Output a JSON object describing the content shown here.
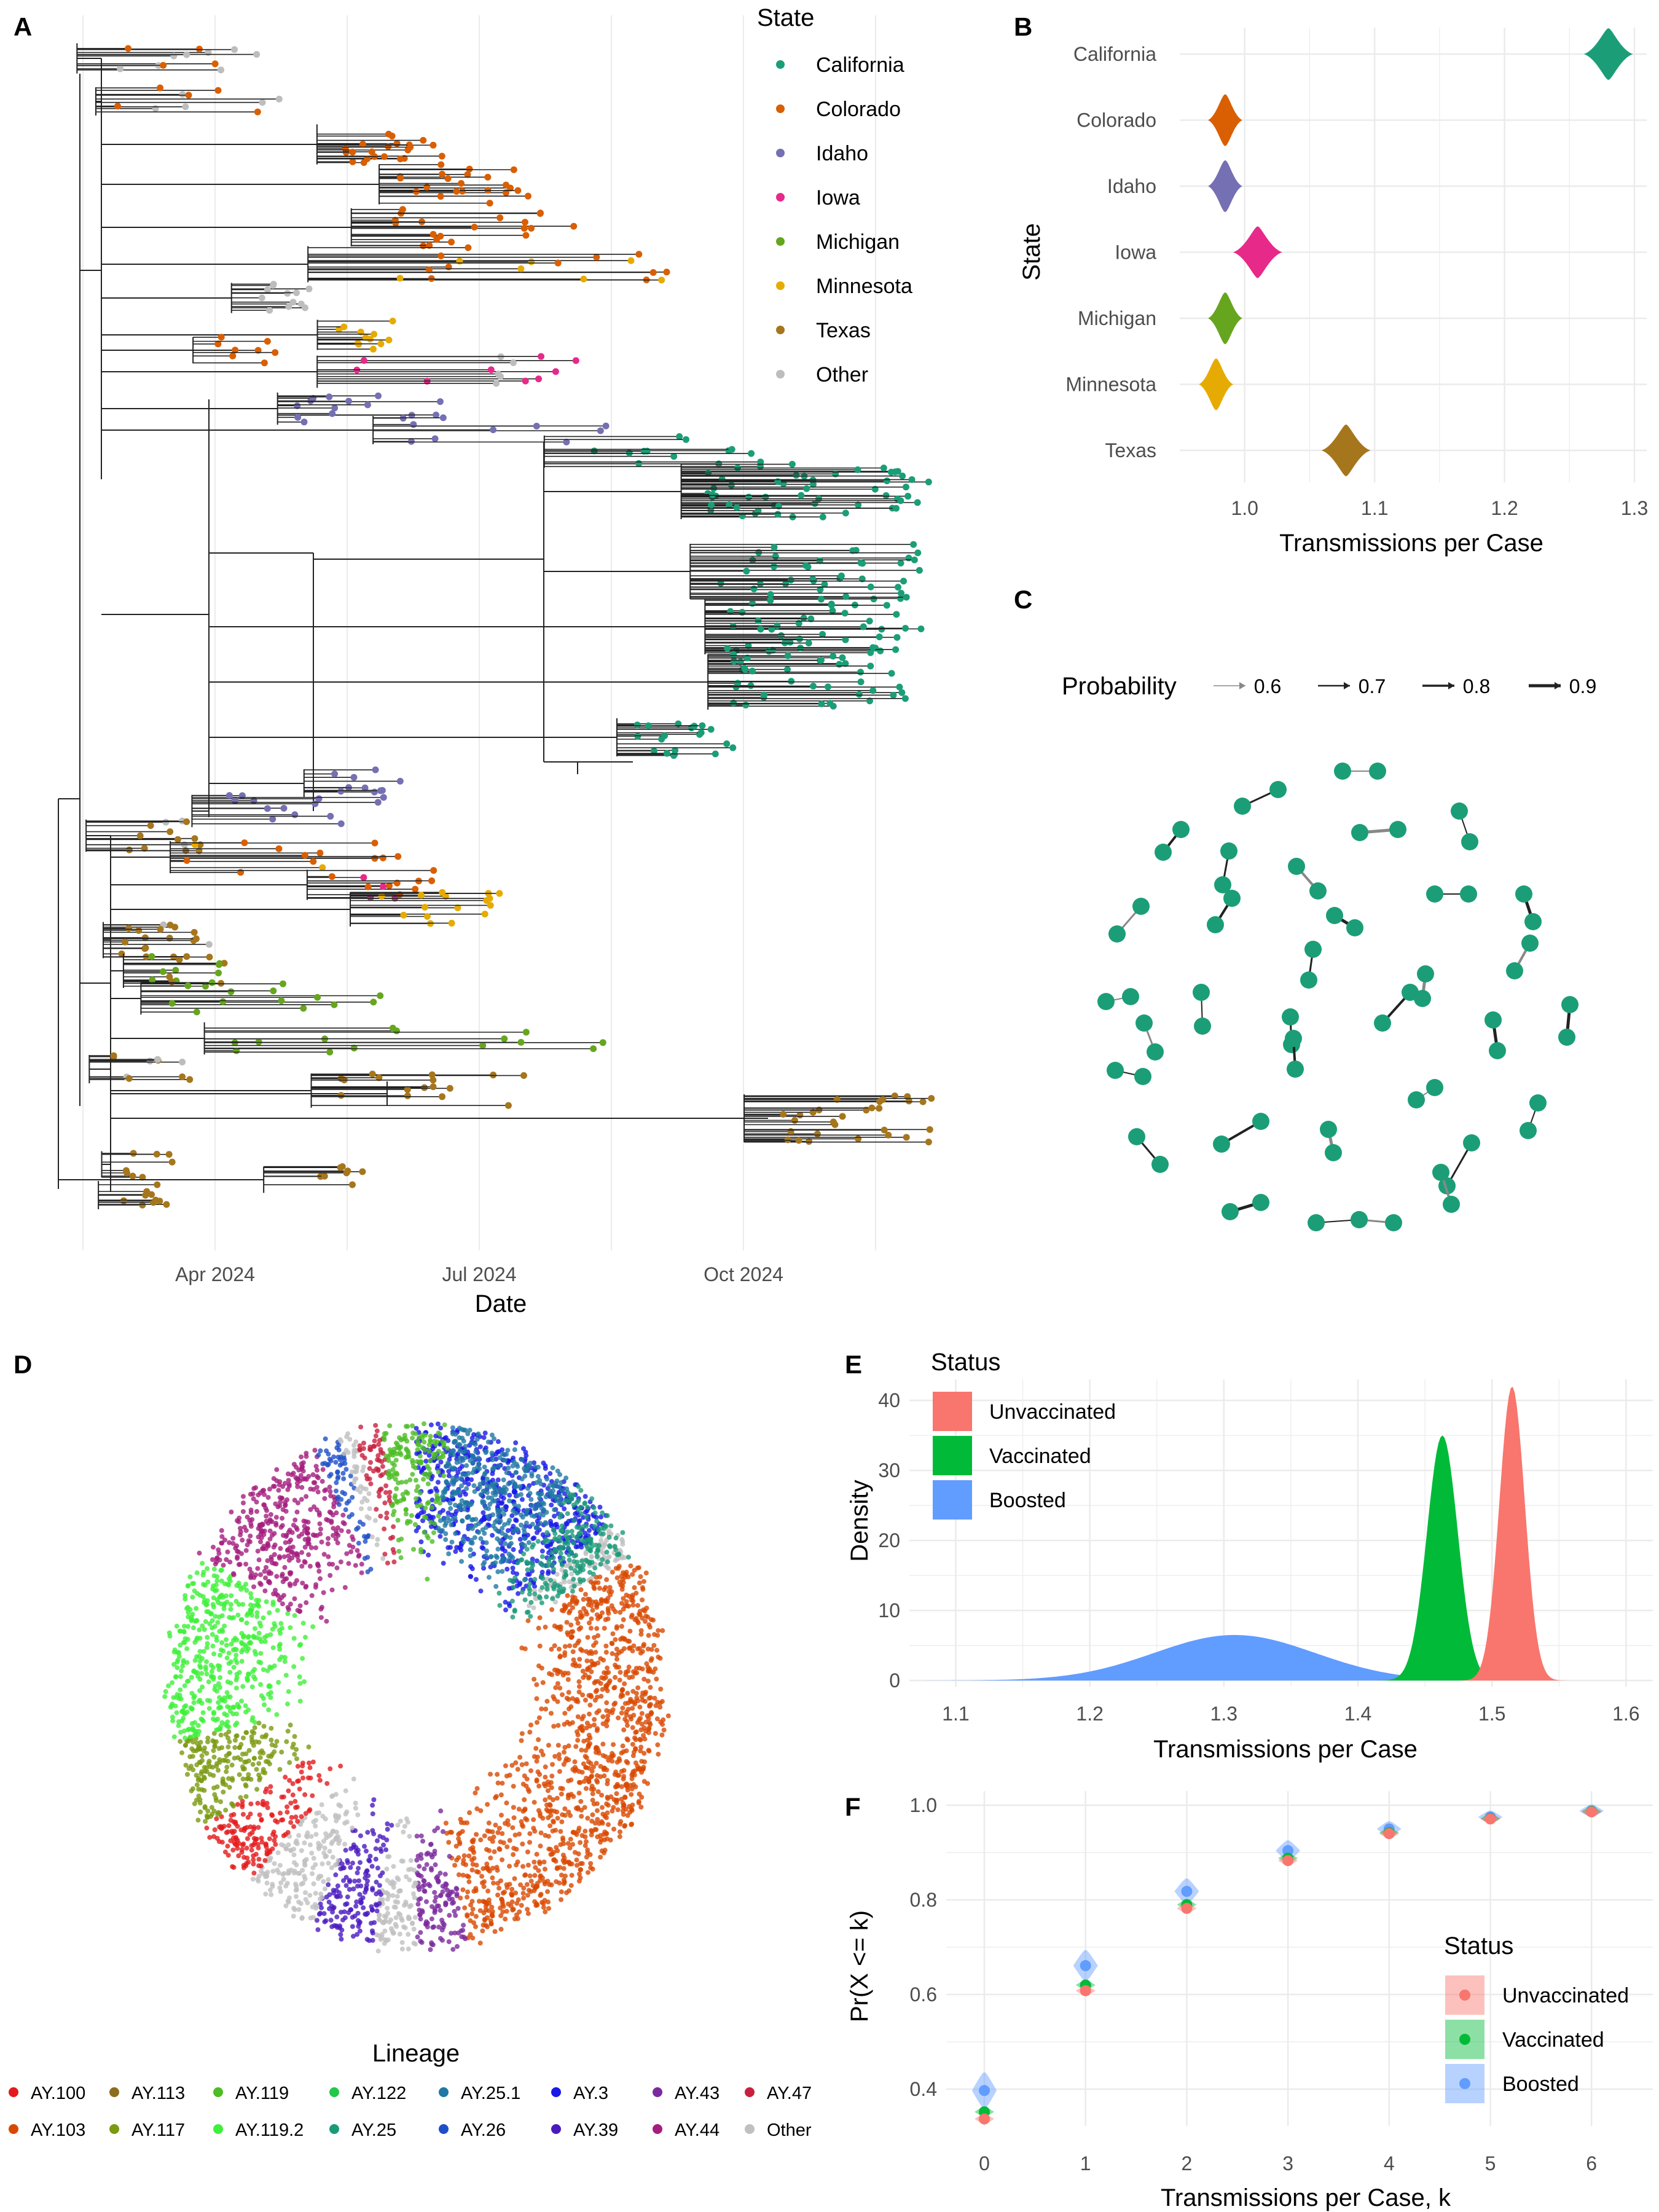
{
  "panels": {
    "a": "A",
    "b": "B",
    "c": "C",
    "d": "D",
    "e": "E",
    "f": "F"
  },
  "colors": {
    "California": "#1b9e77",
    "Colorado": "#d95f02",
    "Idaho": "#7570b3",
    "Iowa": "#e7298a",
    "Michigan": "#66a61e",
    "Minnesota": "#e6ab02",
    "Texas": "#a6761d",
    "Other": "#bdbdbd",
    "Unvaccinated": "#f8766d",
    "Vaccinated": "#00ba38",
    "Boosted": "#619cff"
  },
  "chart_data": [
    {
      "id": "A",
      "type": "scatter",
      "description_of_marks": "phylogenetic time tree, tips colored by state",
      "xlabel": "Date",
      "x_ticks": [
        "Apr 2024",
        "Jul 2024",
        "Oct 2024"
      ],
      "legend_title": "State",
      "legend": [
        "California",
        "Colorado",
        "Idaho",
        "Iowa",
        "Michigan",
        "Minnesota",
        "Texas",
        "Other"
      ],
      "grid": true
    },
    {
      "id": "B",
      "type": "scatter",
      "xlabel": "Transmissions per Case",
      "ylabel": "State",
      "xlim": [
        0.95,
        1.3
      ],
      "x_ticks": [
        "1.0",
        "1.1",
        "1.2",
        "1.3"
      ],
      "categories": [
        "California",
        "Colorado",
        "Idaho",
        "Iowa",
        "Michigan",
        "Minnesota",
        "Texas"
      ],
      "values": [
        1.28,
        0.985,
        0.985,
        1.01,
        0.985,
        0.978,
        1.078
      ],
      "grid": true
    },
    {
      "id": "C",
      "type": "scatter",
      "legend_title": "Probability",
      "legend": [
        "0.6",
        "0.7",
        "0.8",
        "0.9"
      ]
    },
    {
      "id": "D",
      "type": "scatter",
      "legend_title": "Lineage",
      "legend": [
        "AY.100",
        "AY.113",
        "AY.119",
        "AY.122",
        "AY.25.1",
        "AY.3",
        "AY.43",
        "AY.47",
        "AY.103",
        "AY.117",
        "AY.119.2",
        "AY.25",
        "AY.26",
        "AY.39",
        "AY.44",
        "Other"
      ],
      "legend_colors": [
        "#e41a1c",
        "#8c6d1f",
        "#4dbd25",
        "#22c84a",
        "#1f78a4",
        "#1818e8",
        "#7b2a9e",
        "#c8203e",
        "#d94801",
        "#7a9a10",
        "#3ef03a",
        "#1a9a78",
        "#1f4fc8",
        "#4a1abf",
        "#a41e7e",
        "#c0c0c0"
      ]
    },
    {
      "id": "E",
      "type": "area",
      "xlabel": "Transmissions per Case",
      "ylabel": "Density",
      "xlim": [
        1.07,
        1.62
      ],
      "ylim": [
        0,
        43
      ],
      "x_ticks": [
        "1.1",
        "1.2",
        "1.3",
        "1.4",
        "1.5",
        "1.6"
      ],
      "y_ticks": [
        "0",
        "10",
        "20",
        "30",
        "40"
      ],
      "legend_title": "Status",
      "series": [
        {
          "name": "Unvaccinated",
          "mean": 1.515,
          "sd": 0.0095,
          "peak": 42
        },
        {
          "name": "Vaccinated",
          "mean": 1.463,
          "sd": 0.0115,
          "peak": 35
        },
        {
          "name": "Boosted",
          "mean": 1.308,
          "sd": 0.06,
          "peak": 6.5
        }
      ],
      "grid": true
    },
    {
      "id": "F",
      "type": "scatter",
      "xlabel": "Transmissions per Case, k",
      "ylabel": "Pr(X <= k)",
      "categories": [
        "0",
        "1",
        "2",
        "3",
        "4",
        "5",
        "6"
      ],
      "ylim": [
        0.32,
        1.02
      ],
      "y_ticks": [
        "0.4",
        "0.6",
        "0.8",
        "1.0"
      ],
      "legend_title": "Status",
      "series": [
        {
          "name": "Unvaccinated",
          "values": [
            0.337,
            0.608,
            0.782,
            0.883,
            0.94,
            0.971,
            0.986
          ]
        },
        {
          "name": "Vaccinated",
          "values": [
            0.352,
            0.62,
            0.79,
            0.888,
            0.942,
            0.972,
            0.987
          ]
        },
        {
          "name": "Boosted",
          "values": [
            0.397,
            0.661,
            0.818,
            0.904,
            0.95,
            0.975,
            0.988
          ]
        }
      ],
      "grid": true
    }
  ]
}
